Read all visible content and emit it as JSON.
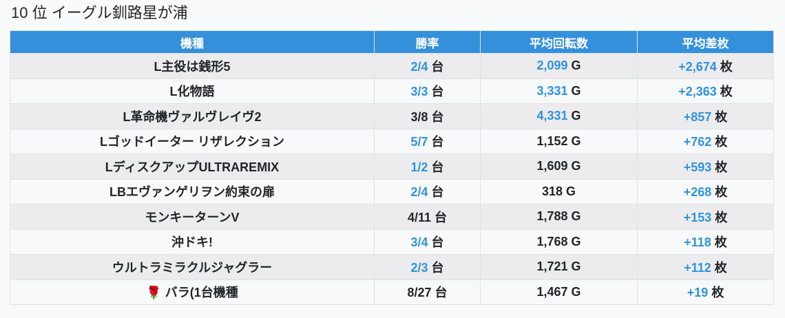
{
  "page": {
    "title": "10 位 イーグル釧路星が浦"
  },
  "colors": {
    "header_bg": "#3590db",
    "header_text": "#ffffff",
    "accent_blue": "#2e93dd",
    "text_dark": "#212529",
    "row_alt_bg": "#ececee",
    "row_bg": "#f8f9fa",
    "border": "#dee2e6",
    "page_bg": "#f9fafb"
  },
  "chart_data": {
    "type": "table",
    "title": "10 位 イーグル釧路星が浦",
    "columns": [
      {
        "key": "name",
        "label": "機種",
        "unit": null
      },
      {
        "key": "win_rate",
        "label": "勝率",
        "unit": "台"
      },
      {
        "key": "spins",
        "label": "平均回転数",
        "unit": "G"
      },
      {
        "key": "diff",
        "label": "平均差枚",
        "unit": "枚"
      }
    ],
    "rows": [
      {
        "name": "L主役は銭形5",
        "win_rate": "2/4",
        "win_rate_blue": true,
        "spins": "2,099",
        "spins_blue": true,
        "diff": "+2,674",
        "diff_blue": true
      },
      {
        "name": "L化物語",
        "win_rate": "3/3",
        "win_rate_blue": true,
        "spins": "3,331",
        "spins_blue": true,
        "diff": "+2,363",
        "diff_blue": true
      },
      {
        "name": "L革命機ヴァルヴレイヴ2",
        "win_rate": "3/8",
        "win_rate_blue": false,
        "spins": "4,331",
        "spins_blue": true,
        "diff": "+857",
        "diff_blue": true
      },
      {
        "name": "Lゴッドイーター リザレクション",
        "win_rate": "5/7",
        "win_rate_blue": true,
        "spins": "1,152",
        "spins_blue": false,
        "diff": "+762",
        "diff_blue": true
      },
      {
        "name": "LディスクアップULTRAREMIX",
        "win_rate": "1/2",
        "win_rate_blue": true,
        "spins": "1,609",
        "spins_blue": false,
        "diff": "+593",
        "diff_blue": true
      },
      {
        "name": "LBエヴァンゲリヲン約束の扉",
        "win_rate": "2/4",
        "win_rate_blue": true,
        "spins": "318",
        "spins_blue": false,
        "diff": "+268",
        "diff_blue": true
      },
      {
        "name": "モンキーターンV",
        "win_rate": "4/11",
        "win_rate_blue": false,
        "spins": "1,788",
        "spins_blue": false,
        "diff": "+153",
        "diff_blue": true
      },
      {
        "name": "沖ドキ!",
        "win_rate": "3/4",
        "win_rate_blue": true,
        "spins": "1,768",
        "spins_blue": false,
        "diff": "+118",
        "diff_blue": true
      },
      {
        "name": "ウルトラミラクルジャグラー",
        "win_rate": "2/3",
        "win_rate_blue": true,
        "spins": "1,721",
        "spins_blue": false,
        "diff": "+112",
        "diff_blue": true
      },
      {
        "name": "🌹 バラ(1台機種",
        "win_rate": "8/27",
        "win_rate_blue": false,
        "spins": "1,467",
        "spins_blue": false,
        "diff": "+19",
        "diff_blue": true
      }
    ]
  }
}
